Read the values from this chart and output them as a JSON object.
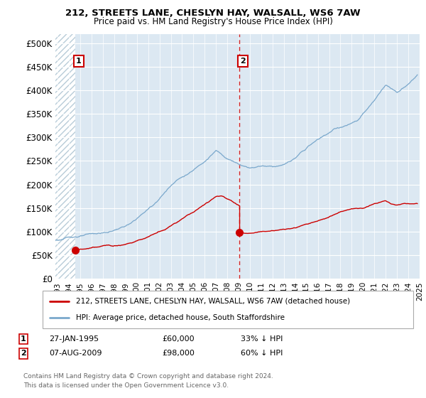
{
  "title1": "212, STREETS LANE, CHESLYN HAY, WALSALL, WS6 7AW",
  "title2": "Price paid vs. HM Land Registry's House Price Index (HPI)",
  "ylabel_ticks": [
    "£0",
    "£50K",
    "£100K",
    "£150K",
    "£200K",
    "£250K",
    "£300K",
    "£350K",
    "£400K",
    "£450K",
    "£500K"
  ],
  "ytick_values": [
    0,
    50000,
    100000,
    150000,
    200000,
    250000,
    300000,
    350000,
    400000,
    450000,
    500000
  ],
  "ylim": [
    0,
    520000
  ],
  "xlim_start": 1993.3,
  "xlim_end": 2025.5,
  "legend_line1": "212, STREETS LANE, CHESLYN HAY, WALSALL, WS6 7AW (detached house)",
  "legend_line2": "HPI: Average price, detached house, South Staffordshire",
  "annotation1_date": "27-JAN-1995",
  "annotation1_price": "£60,000",
  "annotation1_pct": "33% ↓ HPI",
  "annotation2_date": "07-AUG-2009",
  "annotation2_price": "£98,000",
  "annotation2_pct": "60% ↓ HPI",
  "footnote": "Contains HM Land Registry data © Crown copyright and database right 2024.\nThis data is licensed under the Open Government Licence v3.0.",
  "plot_bg": "#dce8f2",
  "hatch_color": "#b8ccd8",
  "grid_color": "#ffffff",
  "red_line_color": "#cc0000",
  "blue_line_color": "#7aa8cc",
  "marker_color": "#cc0000",
  "vline_color": "#cc0000",
  "box_color": "#cc0000",
  "sale1_x": 1995.07,
  "sale1_y": 60000,
  "sale2_x": 2009.58,
  "sale2_y": 98000,
  "hpi_keypoints": [
    [
      1993.5,
      82000
    ],
    [
      1995.07,
      90000
    ],
    [
      1998.0,
      97000
    ],
    [
      2000.0,
      115000
    ],
    [
      2002.0,
      155000
    ],
    [
      2004.0,
      210000
    ],
    [
      2005.5,
      230000
    ],
    [
      2007.5,
      275000
    ],
    [
      2008.5,
      258000
    ],
    [
      2009.58,
      248000
    ],
    [
      2010.5,
      242000
    ],
    [
      2011.5,
      248000
    ],
    [
      2012.5,
      248000
    ],
    [
      2013.5,
      252000
    ],
    [
      2014.5,
      265000
    ],
    [
      2016.0,
      295000
    ],
    [
      2018.0,
      325000
    ],
    [
      2020.0,
      340000
    ],
    [
      2021.5,
      380000
    ],
    [
      2022.5,
      415000
    ],
    [
      2023.5,
      400000
    ],
    [
      2024.5,
      415000
    ],
    [
      2025.3,
      435000
    ]
  ],
  "red_keypoints_pre": [
    [
      1995.07,
      60000
    ],
    [
      1997.0,
      65000
    ],
    [
      1999.0,
      72000
    ],
    [
      2001.0,
      88000
    ],
    [
      2003.0,
      110000
    ],
    [
      2005.0,
      140000
    ],
    [
      2006.0,
      155000
    ],
    [
      2007.5,
      182000
    ],
    [
      2008.0,
      185000
    ],
    [
      2008.5,
      178000
    ],
    [
      2009.0,
      172000
    ],
    [
      2009.58,
      165000
    ]
  ],
  "red_keypoints_post": [
    [
      2009.58,
      98000
    ],
    [
      2010.5,
      97000
    ],
    [
      2011.5,
      100000
    ],
    [
      2012.5,
      103000
    ],
    [
      2013.5,
      105000
    ],
    [
      2014.5,
      108000
    ],
    [
      2015.5,
      115000
    ],
    [
      2016.5,
      122000
    ],
    [
      2017.5,
      130000
    ],
    [
      2018.5,
      140000
    ],
    [
      2019.5,
      148000
    ],
    [
      2020.5,
      148000
    ],
    [
      2021.5,
      158000
    ],
    [
      2022.5,
      165000
    ],
    [
      2023.0,
      158000
    ],
    [
      2023.5,
      155000
    ],
    [
      2024.0,
      158000
    ],
    [
      2025.3,
      158000
    ]
  ]
}
